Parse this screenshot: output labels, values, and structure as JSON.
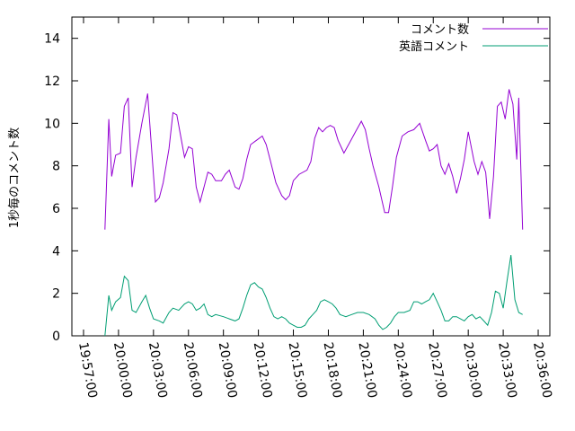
{
  "chart_data": {
    "type": "line",
    "title": "",
    "xlabel": "",
    "ylabel": "1秒毎のコメント数",
    "ylim": [
      0,
      15
    ],
    "yticks": [
      0,
      2,
      4,
      6,
      8,
      10,
      12,
      14
    ],
    "ytick_labels": [
      "0",
      "2",
      "4",
      "6",
      "8",
      "10",
      "12",
      "14"
    ],
    "xlim": [
      "19:56:00",
      "20:37:00"
    ],
    "xticks": [
      "19:57:00",
      "20:00:00",
      "20:03:00",
      "20:06:00",
      "20:09:00",
      "20:12:00",
      "20:15:00",
      "20:18:00",
      "20:21:00",
      "20:24:00",
      "20:27:00",
      "20:30:00",
      "20:33:00",
      "20:36:00"
    ],
    "grid": false,
    "legend_position": "top-right",
    "series": [
      {
        "name": "コメント数",
        "color": "#9400d3",
        "points": [
          [
            "19:58:50",
            5.0
          ],
          [
            "19:59:10",
            10.2
          ],
          [
            "19:59:25",
            7.5
          ],
          [
            "19:59:45",
            8.5
          ],
          [
            "20:00:10",
            8.6
          ],
          [
            "20:00:30",
            10.8
          ],
          [
            "20:00:50",
            11.2
          ],
          [
            "20:01:10",
            7.0
          ],
          [
            "20:01:30",
            8.4
          ],
          [
            "20:02:00",
            10.0
          ],
          [
            "20:02:30",
            11.4
          ],
          [
            "20:03:10",
            6.3
          ],
          [
            "20:03:30",
            6.5
          ],
          [
            "20:03:50",
            7.2
          ],
          [
            "20:04:20",
            8.8
          ],
          [
            "20:04:40",
            10.5
          ],
          [
            "20:05:00",
            10.4
          ],
          [
            "20:05:20",
            9.4
          ],
          [
            "20:05:40",
            8.4
          ],
          [
            "20:06:00",
            8.9
          ],
          [
            "20:06:20",
            8.8
          ],
          [
            "20:06:40",
            7.0
          ],
          [
            "20:07:00",
            6.3
          ],
          [
            "20:07:20",
            7.0
          ],
          [
            "20:07:40",
            7.7
          ],
          [
            "20:08:00",
            7.6
          ],
          [
            "20:08:20",
            7.3
          ],
          [
            "20:08:50",
            7.3
          ],
          [
            "20:09:10",
            7.6
          ],
          [
            "20:09:30",
            7.8
          ],
          [
            "20:10:00",
            7.0
          ],
          [
            "20:10:20",
            6.9
          ],
          [
            "20:10:40",
            7.4
          ],
          [
            "20:11:00",
            8.3
          ],
          [
            "20:11:20",
            9.0
          ],
          [
            "20:11:50",
            9.2
          ],
          [
            "20:12:20",
            9.4
          ],
          [
            "20:12:40",
            9.0
          ],
          [
            "20:13:00",
            8.3
          ],
          [
            "20:13:30",
            7.2
          ],
          [
            "20:14:00",
            6.6
          ],
          [
            "20:14:20",
            6.4
          ],
          [
            "20:14:40",
            6.6
          ],
          [
            "20:15:00",
            7.3
          ],
          [
            "20:15:30",
            7.6
          ],
          [
            "20:16:10",
            7.8
          ],
          [
            "20:16:30",
            8.2
          ],
          [
            "20:16:50",
            9.3
          ],
          [
            "20:17:10",
            9.8
          ],
          [
            "20:17:30",
            9.6
          ],
          [
            "20:17:50",
            9.8
          ],
          [
            "20:18:10",
            9.9
          ],
          [
            "20:18:30",
            9.8
          ],
          [
            "20:18:50",
            9.2
          ],
          [
            "20:19:20",
            8.6
          ],
          [
            "20:19:50",
            9.1
          ],
          [
            "20:20:20",
            9.6
          ],
          [
            "20:20:50",
            10.1
          ],
          [
            "20:21:10",
            9.7
          ],
          [
            "20:21:30",
            8.8
          ],
          [
            "20:21:50",
            8.0
          ],
          [
            "20:22:20",
            7.0
          ],
          [
            "20:22:50",
            5.8
          ],
          [
            "20:23:10",
            5.8
          ],
          [
            "20:23:30",
            7.0
          ],
          [
            "20:23:50",
            8.4
          ],
          [
            "20:24:20",
            9.4
          ],
          [
            "20:24:50",
            9.6
          ],
          [
            "20:25:20",
            9.7
          ],
          [
            "20:25:50",
            10.0
          ],
          [
            "20:26:20",
            9.2
          ],
          [
            "20:26:40",
            8.7
          ],
          [
            "20:27:00",
            8.8
          ],
          [
            "20:27:20",
            9.0
          ],
          [
            "20:27:40",
            8.0
          ],
          [
            "20:28:00",
            7.6
          ],
          [
            "20:28:20",
            8.1
          ],
          [
            "20:28:40",
            7.5
          ],
          [
            "20:29:00",
            6.7
          ],
          [
            "20:29:20",
            7.4
          ],
          [
            "20:29:40",
            8.3
          ],
          [
            "20:30:00",
            9.6
          ],
          [
            "20:30:30",
            8.2
          ],
          [
            "20:30:50",
            7.6
          ],
          [
            "20:31:10",
            8.2
          ],
          [
            "20:31:30",
            7.7
          ],
          [
            "20:31:50",
            5.5
          ],
          [
            "20:32:10",
            7.5
          ],
          [
            "20:32:30",
            10.8
          ],
          [
            "20:32:50",
            11.0
          ],
          [
            "20:33:10",
            10.2
          ],
          [
            "20:33:30",
            11.6
          ],
          [
            "20:33:50",
            10.9
          ],
          [
            "20:34:10",
            8.3
          ],
          [
            "20:34:20",
            11.2
          ],
          [
            "20:34:40",
            5.0
          ]
        ]
      },
      {
        "name": "英語コメント",
        "color": "#009e73",
        "points": [
          [
            "19:58:50",
            0.0
          ],
          [
            "19:59:10",
            1.9
          ],
          [
            "19:59:25",
            1.2
          ],
          [
            "19:59:45",
            1.6
          ],
          [
            "20:00:10",
            1.8
          ],
          [
            "20:00:30",
            2.8
          ],
          [
            "20:00:50",
            2.6
          ],
          [
            "20:01:10",
            1.2
          ],
          [
            "20:01:30",
            1.1
          ],
          [
            "20:02:00",
            1.6
          ],
          [
            "20:02:20",
            1.9
          ],
          [
            "20:02:40",
            1.3
          ],
          [
            "20:03:00",
            0.8
          ],
          [
            "20:03:30",
            0.7
          ],
          [
            "20:03:50",
            0.6
          ],
          [
            "20:04:20",
            1.1
          ],
          [
            "20:04:40",
            1.3
          ],
          [
            "20:05:10",
            1.2
          ],
          [
            "20:05:40",
            1.5
          ],
          [
            "20:06:00",
            1.6
          ],
          [
            "20:06:20",
            1.5
          ],
          [
            "20:06:40",
            1.2
          ],
          [
            "20:07:00",
            1.3
          ],
          [
            "20:07:20",
            1.5
          ],
          [
            "20:07:40",
            1.0
          ],
          [
            "20:08:00",
            0.9
          ],
          [
            "20:08:20",
            1.0
          ],
          [
            "20:09:00",
            0.9
          ],
          [
            "20:09:30",
            0.8
          ],
          [
            "20:10:00",
            0.7
          ],
          [
            "20:10:20",
            0.8
          ],
          [
            "20:10:40",
            1.3
          ],
          [
            "20:11:00",
            1.9
          ],
          [
            "20:11:20",
            2.4
          ],
          [
            "20:11:40",
            2.5
          ],
          [
            "20:12:00",
            2.3
          ],
          [
            "20:12:20",
            2.2
          ],
          [
            "20:12:40",
            1.8
          ],
          [
            "20:13:00",
            1.3
          ],
          [
            "20:13:20",
            0.9
          ],
          [
            "20:13:40",
            0.8
          ],
          [
            "20:14:00",
            0.9
          ],
          [
            "20:14:20",
            0.8
          ],
          [
            "20:14:40",
            0.6
          ],
          [
            "20:15:00",
            0.5
          ],
          [
            "20:15:20",
            0.4
          ],
          [
            "20:15:40",
            0.4
          ],
          [
            "20:16:00",
            0.5
          ],
          [
            "20:16:20",
            0.8
          ],
          [
            "20:16:40",
            1.0
          ],
          [
            "20:17:00",
            1.2
          ],
          [
            "20:17:20",
            1.6
          ],
          [
            "20:17:40",
            1.7
          ],
          [
            "20:18:00",
            1.6
          ],
          [
            "20:18:20",
            1.5
          ],
          [
            "20:18:40",
            1.3
          ],
          [
            "20:19:00",
            1.0
          ],
          [
            "20:19:30",
            0.9
          ],
          [
            "20:20:00",
            1.0
          ],
          [
            "20:20:30",
            1.1
          ],
          [
            "20:21:00",
            1.1
          ],
          [
            "20:21:30",
            1.0
          ],
          [
            "20:22:00",
            0.8
          ],
          [
            "20:22:20",
            0.5
          ],
          [
            "20:22:40",
            0.3
          ],
          [
            "20:23:00",
            0.4
          ],
          [
            "20:23:20",
            0.6
          ],
          [
            "20:23:40",
            0.9
          ],
          [
            "20:24:00",
            1.1
          ],
          [
            "20:24:30",
            1.1
          ],
          [
            "20:25:00",
            1.2
          ],
          [
            "20:25:20",
            1.6
          ],
          [
            "20:25:40",
            1.6
          ],
          [
            "20:26:00",
            1.5
          ],
          [
            "20:26:20",
            1.6
          ],
          [
            "20:26:40",
            1.7
          ],
          [
            "20:27:00",
            2.0
          ],
          [
            "20:27:20",
            1.6
          ],
          [
            "20:27:40",
            1.2
          ],
          [
            "20:28:00",
            0.7
          ],
          [
            "20:28:20",
            0.7
          ],
          [
            "20:28:40",
            0.9
          ],
          [
            "20:29:00",
            0.9
          ],
          [
            "20:29:20",
            0.8
          ],
          [
            "20:29:40",
            0.7
          ],
          [
            "20:30:00",
            0.9
          ],
          [
            "20:30:20",
            1.0
          ],
          [
            "20:30:40",
            0.8
          ],
          [
            "20:31:00",
            0.9
          ],
          [
            "20:31:20",
            0.7
          ],
          [
            "20:31:40",
            0.5
          ],
          [
            "20:32:00",
            1.1
          ],
          [
            "20:32:20",
            2.1
          ],
          [
            "20:32:40",
            2.0
          ],
          [
            "20:33:00",
            1.3
          ],
          [
            "20:33:20",
            2.6
          ],
          [
            "20:33:40",
            3.8
          ],
          [
            "20:34:00",
            1.7
          ],
          [
            "20:34:20",
            1.1
          ],
          [
            "20:34:40",
            1.0
          ]
        ]
      }
    ]
  }
}
